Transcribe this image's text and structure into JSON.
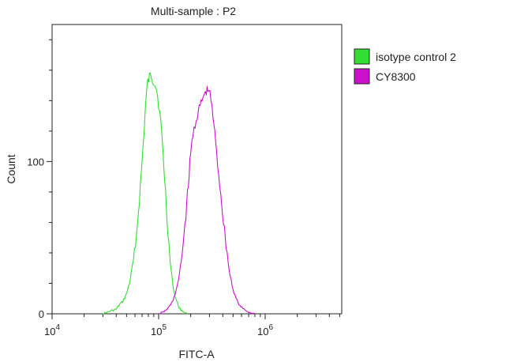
{
  "chart_data": {
    "type": "area",
    "title": "Multi-sample : P2",
    "xlabel": "FITC-A",
    "ylabel": "Count",
    "x_scale": "log",
    "xlim": [
      10000,
      1000000
    ],
    "ylim": [
      0,
      190
    ],
    "x_ticks": [
      {
        "value": 10000,
        "base": "10",
        "exp": "4"
      },
      {
        "value": 100000,
        "base": "10",
        "exp": "5"
      },
      {
        "value": 1000000,
        "base": "10",
        "exp": "6"
      }
    ],
    "y_ticks": [
      0,
      100
    ],
    "grid": false,
    "legend_position": "right",
    "series": [
      {
        "name": "isotype control 2",
        "color": "#33dd33",
        "points": [
          [
            30000,
            0
          ],
          [
            33000,
            1
          ],
          [
            36000,
            2
          ],
          [
            40000,
            3
          ],
          [
            43000,
            6
          ],
          [
            46000,
            8
          ],
          [
            50000,
            13
          ],
          [
            54000,
            22
          ],
          [
            58000,
            35
          ],
          [
            62000,
            52
          ],
          [
            66000,
            75
          ],
          [
            70000,
            100
          ],
          [
            73000,
            120
          ],
          [
            76000,
            140
          ],
          [
            79000,
            152
          ],
          [
            82000,
            155
          ],
          [
            85000,
            157
          ],
          [
            88000,
            154
          ],
          [
            92000,
            152
          ],
          [
            96000,
            147
          ],
          [
            100000,
            138
          ],
          [
            105000,
            125
          ],
          [
            110000,
            105
          ],
          [
            116000,
            80
          ],
          [
            122000,
            55
          ],
          [
            128000,
            35
          ],
          [
            134000,
            22
          ],
          [
            140000,
            14
          ],
          [
            148000,
            8
          ],
          [
            156000,
            4
          ],
          [
            165000,
            2
          ],
          [
            175000,
            1
          ],
          [
            185000,
            0
          ]
        ]
      },
      {
        "name": "CY8300",
        "color": "#cc11cc",
        "points": [
          [
            100000,
            0
          ],
          [
            110000,
            1
          ],
          [
            120000,
            3
          ],
          [
            130000,
            6
          ],
          [
            140000,
            11
          ],
          [
            150000,
            18
          ],
          [
            160000,
            30
          ],
          [
            170000,
            46
          ],
          [
            180000,
            65
          ],
          [
            190000,
            85
          ],
          [
            200000,
            105
          ],
          [
            210000,
            118
          ],
          [
            220000,
            125
          ],
          [
            235000,
            132
          ],
          [
            250000,
            138
          ],
          [
            265000,
            143
          ],
          [
            280000,
            146
          ],
          [
            295000,
            147
          ],
          [
            310000,
            140
          ],
          [
            330000,
            125
          ],
          [
            350000,
            105
          ],
          [
            375000,
            85
          ],
          [
            400000,
            65
          ],
          [
            430000,
            45
          ],
          [
            460000,
            28
          ],
          [
            500000,
            16
          ],
          [
            540000,
            9
          ],
          [
            580000,
            5
          ],
          [
            630000,
            3
          ],
          [
            700000,
            1
          ],
          [
            800000,
            0
          ]
        ]
      }
    ]
  }
}
